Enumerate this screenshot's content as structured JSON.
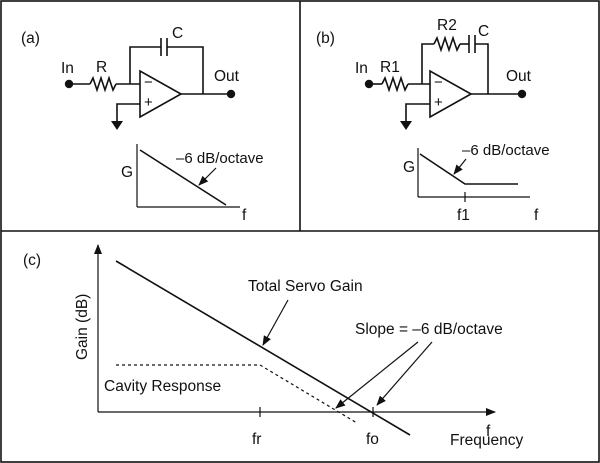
{
  "panel_a": {
    "tag": "(a)",
    "input_label": "In",
    "output_label": "Out",
    "resistor_label": "R",
    "capacitor_label": "C",
    "minus_sign": "−",
    "plus_sign": "+",
    "graph": {
      "y_label": "G",
      "x_label": "f",
      "slope_label": "–6 dB/octave"
    }
  },
  "panel_b": {
    "tag": "(b)",
    "input_label": "In",
    "output_label": "Out",
    "resistor1_label": "R1",
    "resistor2_label": "R2",
    "capacitor_label": "C",
    "minus_sign": "−",
    "plus_sign": "+",
    "graph": {
      "y_label": "G",
      "x_label": "f",
      "slope_label": "–6 dB/octave",
      "corner_tick_label": "f1"
    }
  },
  "panel_c": {
    "tag": "(c)",
    "y_axis_label": "Gain (dB)",
    "x_axis_label": "Frequency",
    "x_axis_end_label": "f",
    "total_gain_label": "Total Servo Gain",
    "slope_label": "Slope = –6 dB/octave",
    "cavity_label": "Cavity Response",
    "tick_fr": "fr",
    "tick_fo": "fo"
  }
}
